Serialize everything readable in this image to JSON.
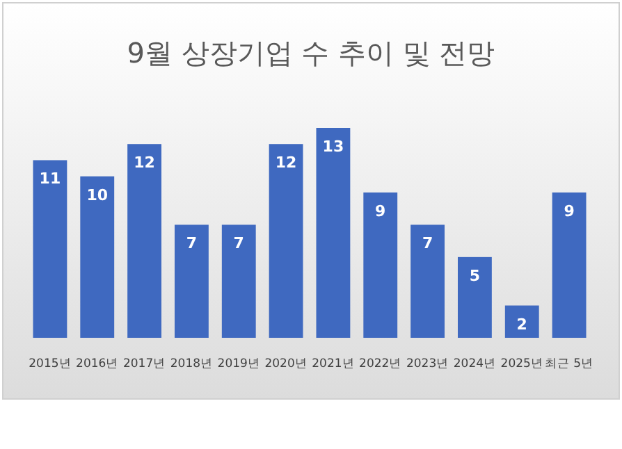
{
  "chart_data": {
    "type": "bar",
    "title": "9월 상장기업 수 추이 및 전망",
    "categories": [
      "2015년",
      "2016년",
      "2017년",
      "2018년",
      "2019년",
      "2020년",
      "2021년",
      "2022년",
      "2023년",
      "2024년",
      "2025년",
      "최근 5년"
    ],
    "values": [
      11,
      10,
      12,
      7,
      7,
      12,
      13,
      9,
      7,
      5,
      2,
      9
    ],
    "color": "#3f69c0",
    "data_labels": true
  }
}
